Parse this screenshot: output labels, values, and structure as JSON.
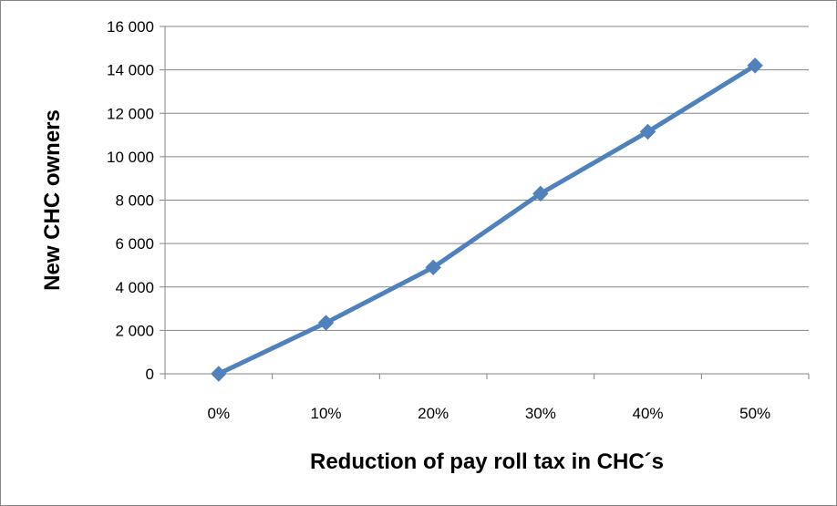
{
  "chart_data": {
    "type": "line",
    "title": "",
    "xlabel": "Reduction of pay roll tax in CHC´s",
    "ylabel": "New CHC owners",
    "categories": [
      "0%",
      "10%",
      "20%",
      "30%",
      "40%",
      "50%"
    ],
    "series": [
      {
        "values": [
          0,
          2350,
          4900,
          8300,
          11150,
          14200
        ],
        "color": "#4F81BD"
      }
    ],
    "ylim": [
      0,
      16000
    ],
    "yticks": [
      0,
      2000,
      4000,
      6000,
      8000,
      10000,
      12000,
      14000,
      16000
    ],
    "ytick_labels": [
      "0",
      "2 000",
      "4 000",
      "6 000",
      "8 000",
      "10 000",
      "12 000",
      "14 000",
      "16 000"
    ],
    "grid": true,
    "legend": "none",
    "marker": "diamond"
  }
}
